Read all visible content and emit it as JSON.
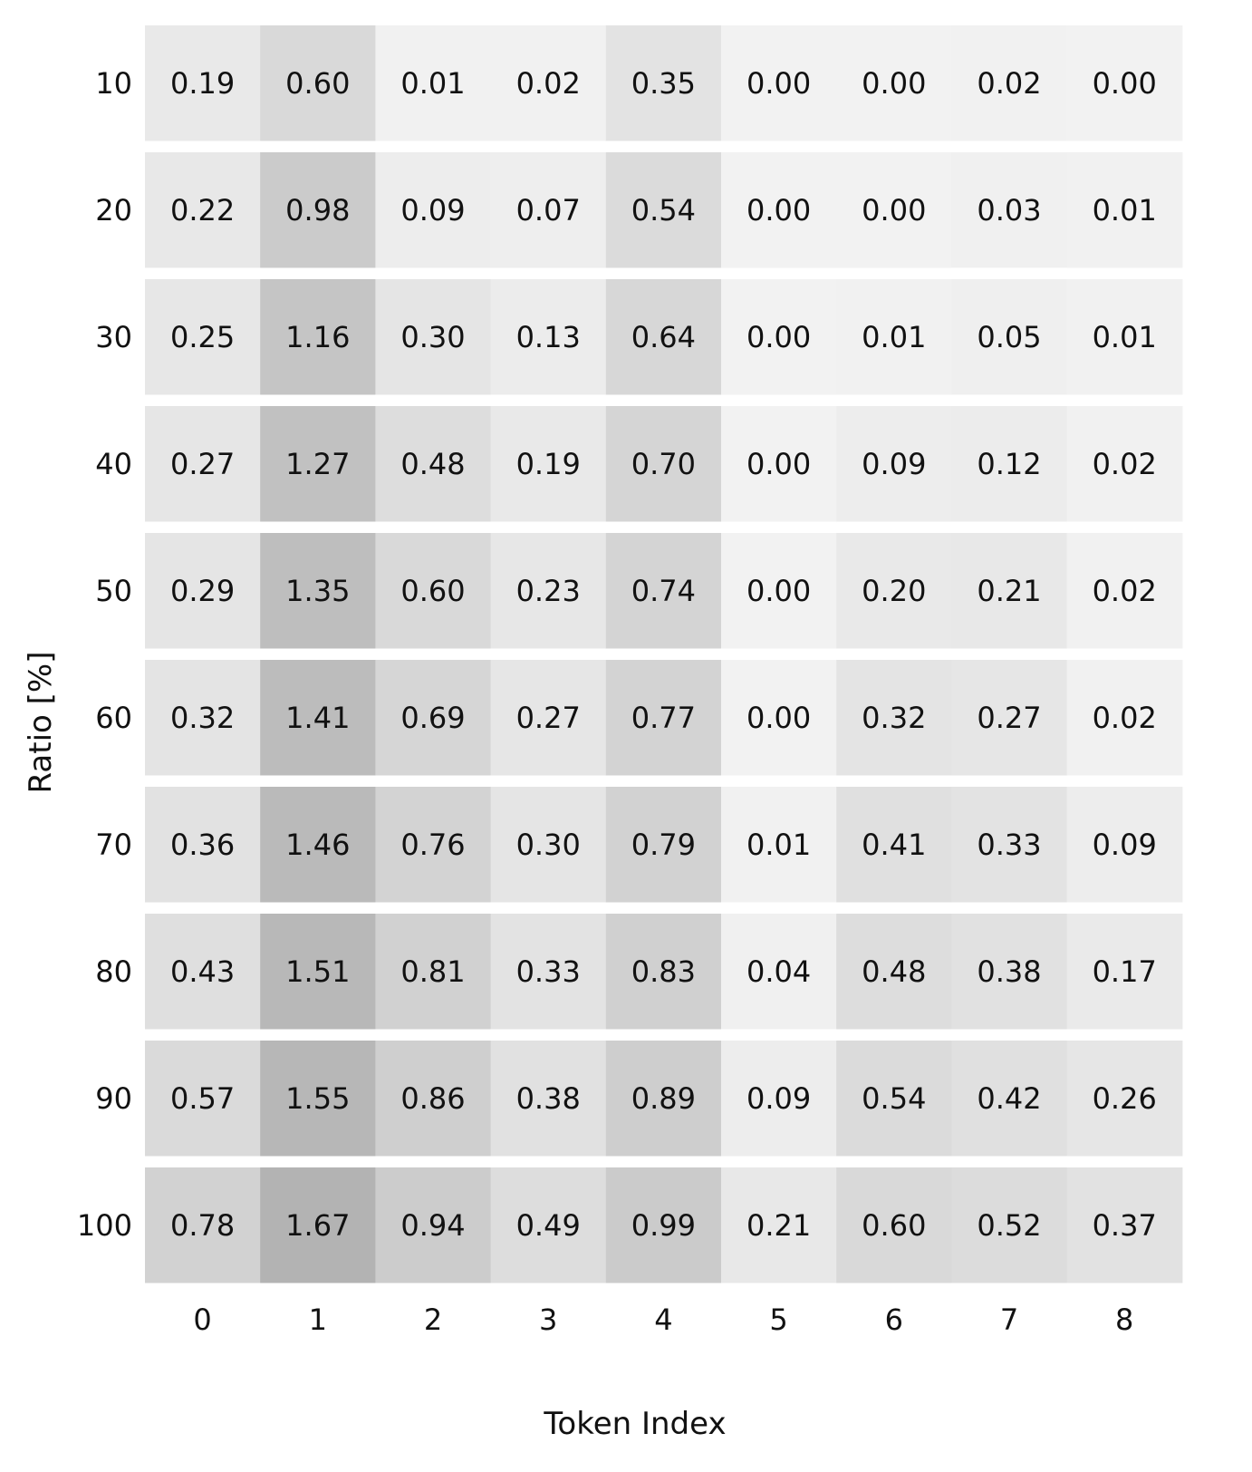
{
  "chart_data": {
    "type": "heatmap",
    "xlabel": "Token Index",
    "ylabel": "Ratio [%]",
    "x_categories": [
      "0",
      "1",
      "2",
      "3",
      "4",
      "5",
      "6",
      "7",
      "8"
    ],
    "y_categories": [
      "10",
      "20",
      "30",
      "40",
      "50",
      "60",
      "70",
      "80",
      "90",
      "100"
    ],
    "values": [
      [
        0.19,
        0.6,
        0.01,
        0.02,
        0.35,
        0.0,
        0.0,
        0.02,
        0.0
      ],
      [
        0.22,
        0.98,
        0.09,
        0.07,
        0.54,
        0.0,
        0.0,
        0.03,
        0.01
      ],
      [
        0.25,
        1.16,
        0.3,
        0.13,
        0.64,
        0.0,
        0.01,
        0.05,
        0.01
      ],
      [
        0.27,
        1.27,
        0.48,
        0.19,
        0.7,
        0.0,
        0.09,
        0.12,
        0.02
      ],
      [
        0.29,
        1.35,
        0.6,
        0.23,
        0.74,
        0.0,
        0.2,
        0.21,
        0.02
      ],
      [
        0.32,
        1.41,
        0.69,
        0.27,
        0.77,
        0.0,
        0.32,
        0.27,
        0.02
      ],
      [
        0.36,
        1.46,
        0.76,
        0.3,
        0.79,
        0.01,
        0.41,
        0.33,
        0.09
      ],
      [
        0.43,
        1.51,
        0.81,
        0.33,
        0.83,
        0.04,
        0.48,
        0.38,
        0.17
      ],
      [
        0.57,
        1.55,
        0.86,
        0.38,
        0.89,
        0.09,
        0.54,
        0.42,
        0.26
      ],
      [
        0.78,
        1.67,
        0.94,
        0.49,
        0.99,
        0.21,
        0.6,
        0.52,
        0.37
      ]
    ],
    "colormap": "grayscale, column-normalized (lighter = lower)",
    "color_low": "#f2f2f2",
    "color_high": "#b3b3b3",
    "grid": false
  }
}
